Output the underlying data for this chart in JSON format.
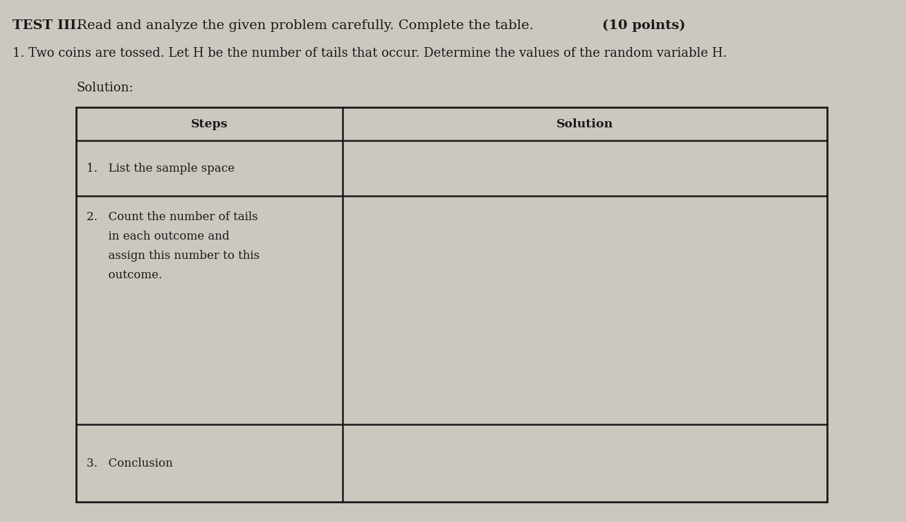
{
  "title_bold": "TEST III.",
  "title_normal": " Read and analyze the given problem carefully. Complete the table. ",
  "title_bold2": "(10 points)",
  "problem": "1. Two coins are tossed. Let H be the number of tails that occur. Determine the values of the random variable H.",
  "solution_label": "Solution:",
  "col1_header": "Steps",
  "col2_header": "Solution",
  "row1_step": "1.   List the sample space",
  "row2_step_lines": [
    "2.   Count the number of tails",
    "      in each outcome and",
    "      assign this number to this",
    "      outcome."
  ],
  "row3_step": "3.   Conclusion",
  "bg_color": "#ccc8c0",
  "text_color": "#1a1a1a",
  "border_color": "#1a1a1a",
  "font_size_title": 14,
  "font_size_body": 13,
  "font_size_table": 12
}
